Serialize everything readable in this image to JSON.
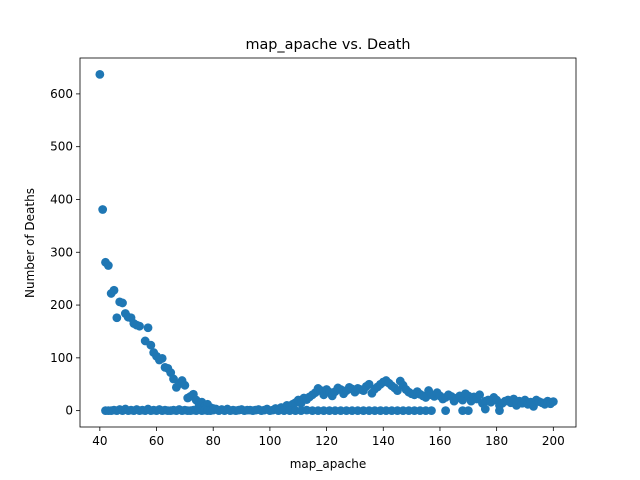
{
  "chart_data": {
    "type": "scatter",
    "title": "map_apache vs. Death",
    "xlabel": "map_apache",
    "ylabel": "Number of Deaths",
    "xlim": [
      33.0,
      208.0
    ],
    "ylim": [
      -31.0,
      668.0
    ],
    "xticks": [
      40,
      60,
      80,
      100,
      120,
      140,
      160,
      180,
      200
    ],
    "yticks": [
      0,
      100,
      200,
      300,
      400,
      500,
      600
    ],
    "grid": false,
    "color": "#1f77b4",
    "points": [
      [
        40,
        637
      ],
      [
        41,
        381
      ],
      [
        42,
        281
      ],
      [
        43,
        275
      ],
      [
        44,
        222
      ],
      [
        45,
        228
      ],
      [
        46,
        176
      ],
      [
        47,
        206
      ],
      [
        48,
        204
      ],
      [
        49,
        184
      ],
      [
        50,
        177
      ],
      [
        51,
        176
      ],
      [
        52,
        165
      ],
      [
        53,
        162
      ],
      [
        54,
        160
      ],
      [
        56,
        132
      ],
      [
        57,
        157
      ],
      [
        58,
        124
      ],
      [
        59,
        110
      ],
      [
        60,
        103
      ],
      [
        61,
        96
      ],
      [
        62,
        99
      ],
      [
        63,
        82
      ],
      [
        64,
        80
      ],
      [
        65,
        72
      ],
      [
        66,
        60
      ],
      [
        67,
        44
      ],
      [
        68,
        51
      ],
      [
        69,
        57
      ],
      [
        70,
        48
      ],
      [
        71,
        24
      ],
      [
        72,
        27
      ],
      [
        73,
        31
      ],
      [
        74,
        20
      ],
      [
        75,
        10
      ],
      [
        76,
        16
      ],
      [
        77,
        8
      ],
      [
        78,
        12
      ],
      [
        79,
        6
      ],
      [
        80,
        4
      ],
      [
        81,
        3
      ],
      [
        83,
        2
      ],
      [
        85,
        3
      ],
      [
        87,
        1
      ],
      [
        90,
        2
      ],
      [
        93,
        1
      ],
      [
        96,
        2
      ],
      [
        99,
        3
      ],
      [
        102,
        4
      ],
      [
        104,
        6
      ],
      [
        106,
        10
      ],
      [
        107,
        7
      ],
      [
        108,
        12
      ],
      [
        109,
        15
      ],
      [
        110,
        20
      ],
      [
        111,
        14
      ],
      [
        112,
        24
      ],
      [
        113,
        21
      ],
      [
        114,
        26
      ],
      [
        115,
        30
      ],
      [
        116,
        34
      ],
      [
        117,
        42
      ],
      [
        118,
        38
      ],
      [
        119,
        30
      ],
      [
        120,
        40
      ],
      [
        121,
        35
      ],
      [
        122,
        28
      ],
      [
        123,
        36
      ],
      [
        124,
        43
      ],
      [
        125,
        40
      ],
      [
        126,
        32
      ],
      [
        127,
        38
      ],
      [
        128,
        44
      ],
      [
        129,
        41
      ],
      [
        130,
        35
      ],
      [
        131,
        42
      ],
      [
        132,
        40
      ],
      [
        133,
        38
      ],
      [
        134,
        46
      ],
      [
        135,
        50
      ],
      [
        136,
        33
      ],
      [
        137,
        41
      ],
      [
        138,
        45
      ],
      [
        139,
        50
      ],
      [
        140,
        54
      ],
      [
        141,
        57
      ],
      [
        142,
        52
      ],
      [
        143,
        47
      ],
      [
        144,
        43
      ],
      [
        145,
        38
      ],
      [
        146,
        56
      ],
      [
        147,
        48
      ],
      [
        148,
        40
      ],
      [
        149,
        35
      ],
      [
        150,
        32
      ],
      [
        151,
        30
      ],
      [
        152,
        36
      ],
      [
        153,
        31
      ],
      [
        154,
        28
      ],
      [
        155,
        25
      ],
      [
        156,
        38
      ],
      [
        157,
        30
      ],
      [
        158,
        27
      ],
      [
        159,
        34
      ],
      [
        160,
        28
      ],
      [
        161,
        22
      ],
      [
        162,
        25
      ],
      [
        163,
        30
      ],
      [
        164,
        27
      ],
      [
        165,
        18
      ],
      [
        166,
        24
      ],
      [
        167,
        28
      ],
      [
        168,
        20
      ],
      [
        169,
        32
      ],
      [
        170,
        28
      ],
      [
        171,
        18
      ],
      [
        172,
        26
      ],
      [
        173,
        22
      ],
      [
        174,
        30
      ],
      [
        175,
        14
      ],
      [
        176,
        18
      ],
      [
        177,
        20
      ],
      [
        178,
        16
      ],
      [
        179,
        25
      ],
      [
        180,
        20
      ],
      [
        181,
        10
      ],
      [
        182,
        14
      ],
      [
        183,
        18
      ],
      [
        184,
        20
      ],
      [
        185,
        15
      ],
      [
        186,
        22
      ],
      [
        187,
        10
      ],
      [
        188,
        18
      ],
      [
        189,
        14
      ],
      [
        190,
        20
      ],
      [
        191,
        12
      ],
      [
        192,
        16
      ],
      [
        193,
        8
      ],
      [
        194,
        20
      ],
      [
        195,
        17
      ],
      [
        196,
        15
      ],
      [
        197,
        12
      ],
      [
        198,
        18
      ],
      [
        199,
        13
      ],
      [
        200,
        17
      ],
      [
        42,
        0
      ],
      [
        43,
        0
      ],
      [
        44,
        0
      ],
      [
        45,
        1
      ],
      [
        46,
        0
      ],
      [
        47,
        2
      ],
      [
        48,
        0
      ],
      [
        49,
        3
      ],
      [
        50,
        0
      ],
      [
        51,
        1
      ],
      [
        52,
        0
      ],
      [
        53,
        2
      ],
      [
        54,
        0
      ],
      [
        55,
        1
      ],
      [
        56,
        0
      ],
      [
        57,
        3
      ],
      [
        58,
        0
      ],
      [
        59,
        1
      ],
      [
        60,
        0
      ],
      [
        61,
        2
      ],
      [
        62,
        0
      ],
      [
        63,
        1
      ],
      [
        64,
        0
      ],
      [
        65,
        0
      ],
      [
        66,
        1
      ],
      [
        67,
        0
      ],
      [
        68,
        2
      ],
      [
        69,
        0
      ],
      [
        70,
        1
      ],
      [
        71,
        0
      ],
      [
        72,
        0
      ],
      [
        73,
        1
      ],
      [
        74,
        0
      ],
      [
        75,
        2
      ],
      [
        76,
        0
      ],
      [
        77,
        1
      ],
      [
        78,
        0
      ],
      [
        79,
        0
      ],
      [
        80,
        1
      ],
      [
        82,
        0
      ],
      [
        84,
        0
      ],
      [
        86,
        0
      ],
      [
        88,
        0
      ],
      [
        89,
        1
      ],
      [
        91,
        0
      ],
      [
        92,
        1
      ],
      [
        94,
        0
      ],
      [
        95,
        1
      ],
      [
        97,
        0
      ],
      [
        98,
        1
      ],
      [
        100,
        0
      ],
      [
        101,
        1
      ],
      [
        103,
        0
      ],
      [
        105,
        0
      ],
      [
        107,
        0
      ],
      [
        109,
        0
      ],
      [
        111,
        0
      ],
      [
        113,
        1
      ],
      [
        115,
        0
      ],
      [
        117,
        0
      ],
      [
        119,
        0
      ],
      [
        121,
        0
      ],
      [
        123,
        0
      ],
      [
        125,
        0
      ],
      [
        127,
        0
      ],
      [
        129,
        0
      ],
      [
        131,
        0
      ],
      [
        133,
        0
      ],
      [
        135,
        0
      ],
      [
        137,
        0
      ],
      [
        139,
        0
      ],
      [
        141,
        0
      ],
      [
        143,
        0
      ],
      [
        145,
        0
      ],
      [
        147,
        0
      ],
      [
        149,
        0
      ],
      [
        151,
        0
      ],
      [
        153,
        0
      ],
      [
        155,
        0
      ],
      [
        157,
        0
      ],
      [
        162,
        0
      ],
      [
        168,
        0
      ],
      [
        170,
        0
      ],
      [
        176,
        3
      ],
      [
        181,
        0
      ]
    ]
  }
}
